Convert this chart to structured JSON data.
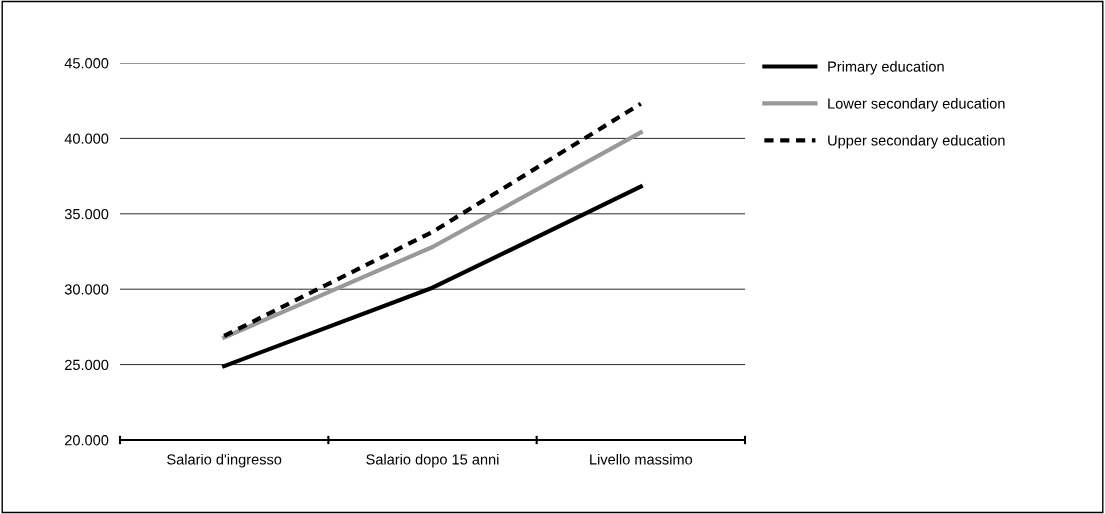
{
  "chart_data": {
    "type": "line",
    "categories": [
      "Salario d'ingresso",
      "Salario dopo 15 anni",
      "Livello massimo"
    ],
    "series": [
      {
        "name": "Primary education",
        "color": "#000000",
        "values": [
          24900,
          30100,
          36800
        ],
        "line_style": "solid"
      },
      {
        "name": "Lower secondary education",
        "color": "#999999",
        "values": [
          26800,
          32800,
          40400
        ],
        "line_style": "solid"
      },
      {
        "name": "Upper secondary education",
        "color": "#000000",
        "values": [
          26900,
          33800,
          42300
        ],
        "line_style": "dashed"
      }
    ],
    "ylim": [
      20000,
      45000
    ],
    "yticks": [
      {
        "value": 20000,
        "label": "20.000"
      },
      {
        "value": 25000,
        "label": "25.000"
      },
      {
        "value": 30000,
        "label": "30.000"
      },
      {
        "value": 35000,
        "label": "35.000"
      },
      {
        "value": 40000,
        "label": "40.000"
      },
      {
        "value": 45000,
        "label": "45.000"
      }
    ],
    "grid": "y",
    "legend": "top right",
    "marker": "none"
  }
}
